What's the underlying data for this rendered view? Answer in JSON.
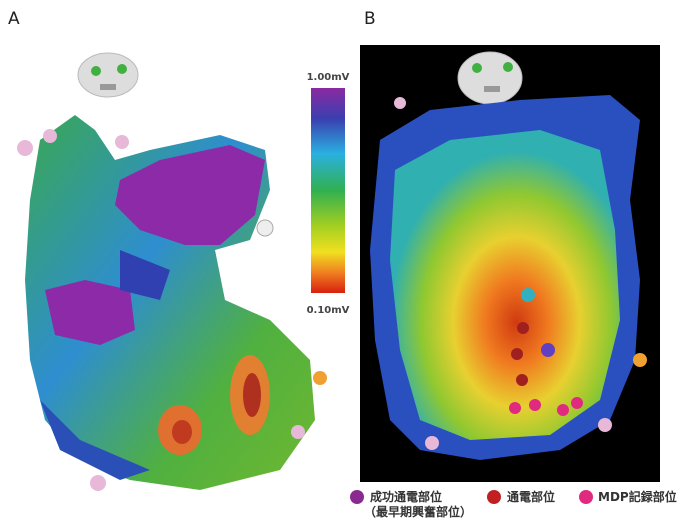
{
  "panels": [
    {
      "label": "A"
    },
    {
      "label": "B"
    }
  ],
  "colorbar": {
    "max_label": "1.00mV",
    "min_label": "0.10mV"
  },
  "legend": [
    {
      "label": "成功通電部位",
      "sublabel": "（最早期興奮部位）"
    },
    {
      "label": "通電部位"
    },
    {
      "label": "MDP記録部位"
    }
  ]
}
